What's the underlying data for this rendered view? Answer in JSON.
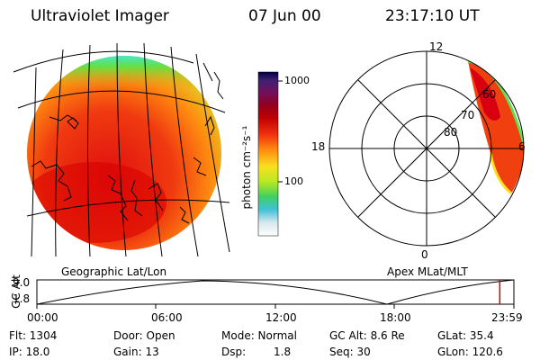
{
  "header": {
    "title": "Ultraviolet Imager",
    "date": "07 Jun 00",
    "time": "23:17:10 UT"
  },
  "colorbar": {
    "unit": "photon cm⁻²s⁻¹",
    "ticks": [
      "1000",
      "100"
    ]
  },
  "earth_view": {
    "caption": "Geographic Lat/Lon"
  },
  "polar_plot": {
    "caption": "Apex MLat/MLT",
    "mlt_labels": {
      "top": "12",
      "left": "18",
      "right": "6",
      "bottom": "0"
    },
    "lat_labels": [
      "60",
      "70",
      "80"
    ]
  },
  "altitude_chart": {
    "ylabel": "GC Alt",
    "y_ticks": [
      "9.0",
      "1.8"
    ],
    "x_ticks": [
      "00:00",
      "06:00",
      "12:00",
      "18:00",
      "23:59"
    ],
    "marker_time_hours": 23.29,
    "marker_color": "#d40000"
  },
  "info": {
    "flt": "Flt: 1304",
    "ip": "IP: 18.0",
    "door": "Door: Open",
    "gain": "Gain: 13",
    "mode": "Mode: Normal",
    "dsp_label": "Dsp:",
    "dsp_value": "1.8",
    "gcalt": "GC Alt: 8.6 Re",
    "seq": "Seq: 30",
    "glat": "GLat: 35.4",
    "glon": "GLon: 120.6"
  }
}
